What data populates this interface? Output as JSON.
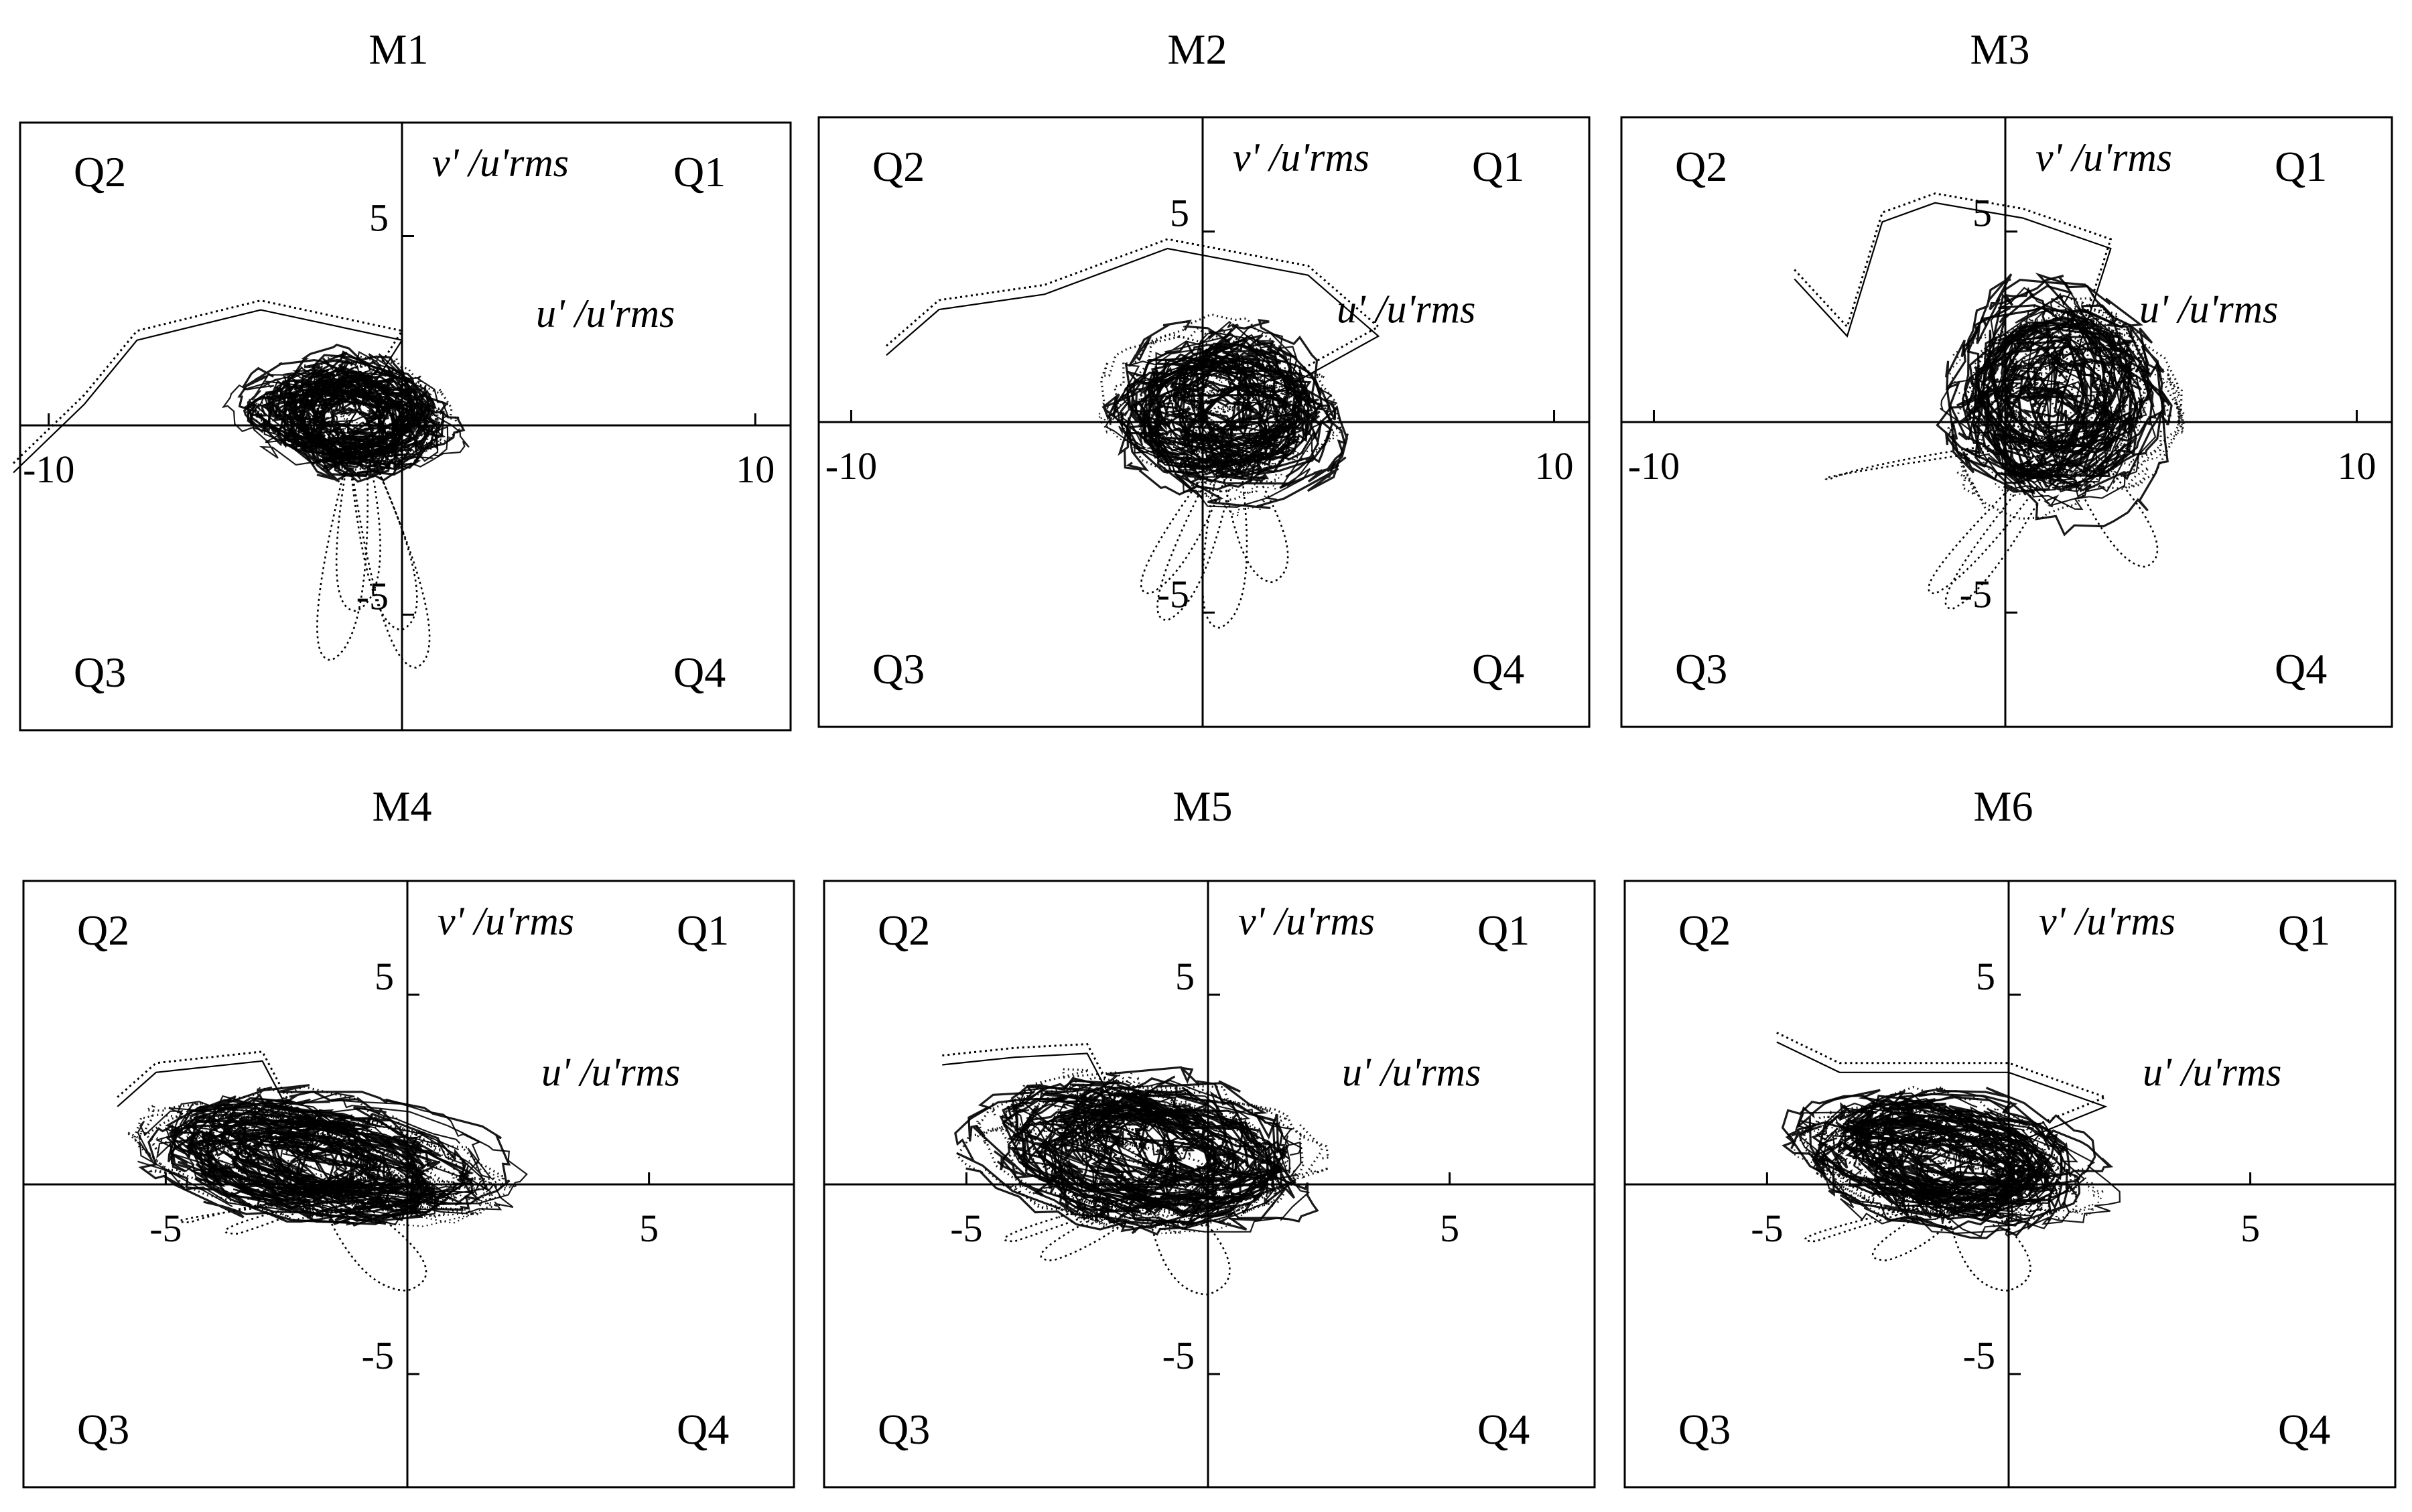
{
  "chart_data": [
    {
      "type": "scatter",
      "title": "M1",
      "xlabel": "u' /u'rms",
      "ylabel": "v' /u'rms",
      "xlim": [
        -11,
        11
      ],
      "ylim": [
        -8,
        8
      ],
      "x_ticks": [
        -10,
        10
      ],
      "y_ticks": [
        5,
        -5
      ],
      "x_tick_labels": [
        "-10",
        "10"
      ],
      "y_tick_labels": [
        "5",
        "-5"
      ],
      "quadrants": [
        "Q1",
        "Q2",
        "Q3",
        "Q4"
      ],
      "grid": false,
      "cloud": {
        "center": [
          -1.5,
          0.3
        ],
        "spread": [
          2.8,
          1.5
        ],
        "tilt": -0.1
      },
      "tail": [
        [
          -11,
          -1
        ],
        [
          -9,
          0.8
        ],
        [
          -7.5,
          2.5
        ],
        [
          -4,
          3.3
        ],
        [
          0,
          2.5
        ]
      ],
      "excursions": [
        [
          -2,
          -6.2
        ],
        [
          0,
          -5.4
        ],
        [
          -1.3,
          -4.9
        ],
        [
          0.4,
          -6.4
        ]
      ]
    },
    {
      "type": "scatter",
      "title": "M2",
      "xlabel": "u' /u'rms",
      "ylabel": "v' /u'rms",
      "xlim": [
        -11,
        11
      ],
      "ylim": [
        -8,
        8
      ],
      "x_ticks": [
        -10,
        10
      ],
      "y_ticks": [
        5,
        -5
      ],
      "x_tick_labels": [
        "-10",
        "10"
      ],
      "y_tick_labels": [
        "5",
        "-5"
      ],
      "quadrants": [
        "Q1",
        "Q2",
        "Q3",
        "Q4"
      ],
      "grid": false,
      "cloud": {
        "center": [
          0.5,
          0.2
        ],
        "spread": [
          3.0,
          2.1
        ],
        "tilt": -0.05
      },
      "tail": [
        [
          -9,
          2
        ],
        [
          -7.5,
          3.2
        ],
        [
          -4.5,
          3.6
        ],
        [
          -1,
          4.8
        ],
        [
          3,
          4.1
        ],
        [
          5,
          2.5
        ]
      ],
      "excursions": [
        [
          -1,
          -5.2
        ],
        [
          0.5,
          -5.4
        ],
        [
          -1.5,
          -4.5
        ],
        [
          2,
          -4.2
        ]
      ]
    },
    {
      "type": "scatter",
      "title": "M3",
      "xlabel": "u' /u'rms",
      "ylabel": "v' /u'rms",
      "xlim": [
        -11,
        11
      ],
      "ylim": [
        -8,
        8
      ],
      "x_ticks": [
        -10,
        10
      ],
      "y_ticks": [
        5,
        -5
      ],
      "x_tick_labels": [
        "-10",
        "10"
      ],
      "y_tick_labels": [
        "5",
        "-5"
      ],
      "quadrants": [
        "Q1",
        "Q2",
        "Q3",
        "Q4"
      ],
      "grid": false,
      "cloud": {
        "center": [
          1.5,
          0.5
        ],
        "spread": [
          3.0,
          2.8
        ],
        "tilt": 0
      },
      "tail": [
        [
          -6,
          4
        ],
        [
          -4.5,
          2.5
        ],
        [
          -3.5,
          5.5
        ],
        [
          -2,
          6
        ],
        [
          0.5,
          5.6
        ],
        [
          3,
          4.8
        ]
      ],
      "excursions": [
        [
          -2,
          -4.5
        ],
        [
          -1.5,
          -4.9
        ],
        [
          -5,
          -1.5
        ],
        [
          4,
          -3.8
        ]
      ]
    },
    {
      "type": "scatter",
      "title": "M4",
      "xlabel": "u' /u'rms",
      "ylabel": "v' /u'rms",
      "xlim": [
        -8,
        8
      ],
      "ylim": [
        -8,
        8
      ],
      "x_ticks": [
        -5,
        5
      ],
      "y_ticks": [
        5,
        -5
      ],
      "x_tick_labels": [
        "-5",
        "5"
      ],
      "y_tick_labels": [
        "5",
        "-5"
      ],
      "quadrants": [
        "Q1",
        "Q2",
        "Q3",
        "Q4"
      ],
      "grid": false,
      "cloud": {
        "center": [
          -1.8,
          0.6
        ],
        "spread": [
          3.6,
          1.5
        ],
        "tilt": -0.28
      },
      "tail": [
        [
          -6,
          2.3
        ],
        [
          -5.2,
          3.2
        ],
        [
          -3,
          3.5
        ]
      ],
      "excursions": [
        [
          -4.5,
          -1
        ],
        [
          -3.5,
          -1.3
        ],
        [
          0,
          -2.8
        ]
      ]
    },
    {
      "type": "scatter",
      "title": "M5",
      "xlabel": "u' /u'rms",
      "ylabel": "v' /u'rms",
      "xlim": [
        -8,
        8
      ],
      "ylim": [
        -8,
        8
      ],
      "x_ticks": [
        -5,
        5
      ],
      "y_ticks": [
        5,
        -5
      ],
      "x_tick_labels": [
        "-5",
        "5"
      ],
      "y_tick_labels": [
        "5",
        "-5"
      ],
      "quadrants": [
        "Q1",
        "Q2",
        "Q3",
        "Q4"
      ],
      "grid": false,
      "cloud": {
        "center": [
          -1.3,
          0.8
        ],
        "spread": [
          3.3,
          1.9
        ],
        "tilt": -0.3
      },
      "tail": [
        [
          -5.5,
          3.4
        ],
        [
          -4,
          3.6
        ],
        [
          -2.5,
          3.7
        ]
      ],
      "excursions": [
        [
          -4,
          -1.5
        ],
        [
          -3.2,
          -2
        ],
        [
          0,
          -2.9
        ]
      ]
    },
    {
      "type": "scatter",
      "title": "M6",
      "xlabel": "u' /u'rms",
      "ylabel": "v' /u'rms",
      "xlim": [
        -8,
        8
      ],
      "ylim": [
        -8,
        8
      ],
      "x_ticks": [
        -5,
        5
      ],
      "y_ticks": [
        5,
        -5
      ],
      "x_tick_labels": [
        "-5",
        "5"
      ],
      "y_tick_labels": [
        "5",
        "-5"
      ],
      "quadrants": [
        "Q1",
        "Q2",
        "Q3",
        "Q4"
      ],
      "grid": false,
      "cloud": {
        "center": [
          -1.3,
          0.6
        ],
        "spread": [
          3.0,
          1.6
        ],
        "tilt": -0.3
      },
      "tail": [
        [
          -4.8,
          4
        ],
        [
          -3.5,
          3.2
        ],
        [
          0,
          3.2
        ],
        [
          2,
          2.3
        ]
      ],
      "excursions": [
        [
          -4,
          -1.5
        ],
        [
          -2.5,
          -2
        ],
        [
          0,
          -2.8
        ]
      ]
    }
  ]
}
